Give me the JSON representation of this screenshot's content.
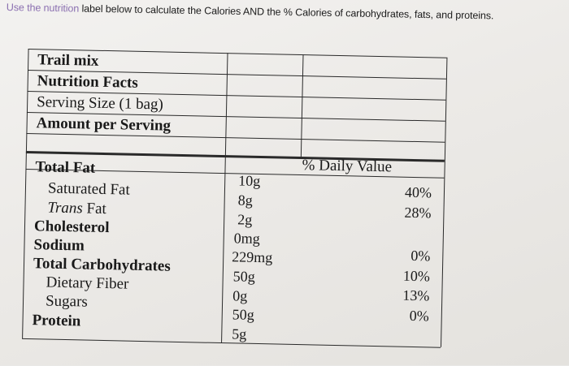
{
  "instruction": {
    "faded": "Use the nutrition",
    "text": " label below to calculate the Calories AND the % Calories of carbohydrates, fats, and proteins."
  },
  "label": {
    "product": "Trail mix",
    "heading": "Nutrition Facts",
    "serving": "Serving Size (1 bag)",
    "amount_header": "Amount per Serving",
    "dv_header": "% Daily Value",
    "rows": [
      {
        "name": "Total Fat",
        "amount": "10g",
        "dv": "40%"
      },
      {
        "name": "Saturated Fat",
        "amount": "8g",
        "dv": "28%"
      },
      {
        "name_italic": "Trans",
        "name": " Fat",
        "amount": "2g",
        "dv": ""
      },
      {
        "name": "Cholesterol",
        "amount": "0mg",
        "dv": "0%"
      },
      {
        "name": "Sodium",
        "amount": "229mg",
        "dv": "10%"
      },
      {
        "name": "Total Carbohydrates",
        "amount": "50g",
        "dv": "13%"
      },
      {
        "name": "Dietary Fiber",
        "amount": "0g",
        "dv": "0%"
      },
      {
        "name": "Sugars",
        "amount": "50g",
        "dv": ""
      },
      {
        "name": "Protein",
        "amount": "5g",
        "dv": ""
      }
    ]
  }
}
